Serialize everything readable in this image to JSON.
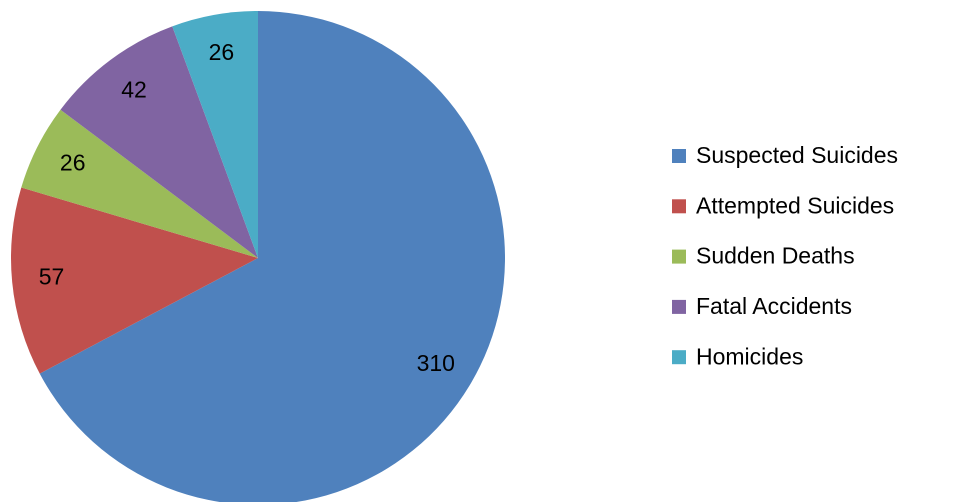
{
  "chart_data": {
    "type": "pie",
    "categories": [
      "Suspected Suicides",
      "Attempted Suicides",
      "Sudden Deaths",
      "Fatal Accidents",
      "Homicides"
    ],
    "values": [
      310,
      57,
      26,
      42,
      26
    ],
    "colors": [
      "#4f81bd",
      "#c0504d",
      "#9bbb59",
      "#8064a2",
      "#4bacc6"
    ],
    "legend": "right"
  }
}
